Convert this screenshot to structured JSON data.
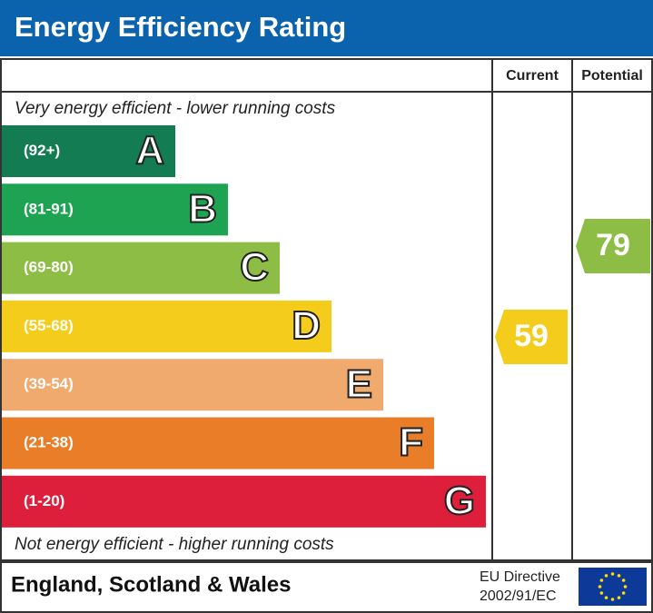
{
  "header": {
    "title": "Energy Efficiency Rating"
  },
  "columns": {
    "current": "Current",
    "potential": "Potential"
  },
  "top_note": "Very energy efficient - lower running costs",
  "bands": [
    {
      "range": "(92+)",
      "letter": "A",
      "color": "#137c52"
    },
    {
      "range": "(81-91)",
      "letter": "B",
      "color": "#1ea352"
    },
    {
      "range": "(69-80)",
      "letter": "C",
      "color": "#8dbd45"
    },
    {
      "range": "(55-68)",
      "letter": "D",
      "color": "#f3cc1c"
    },
    {
      "range": "(39-54)",
      "letter": "E",
      "color": "#f0aa6e"
    },
    {
      "range": "(21-38)",
      "letter": "F",
      "color": "#e97d28"
    },
    {
      "range": "(1-20)",
      "letter": "G",
      "color": "#de1f3c"
    }
  ],
  "bottom_note": "Not energy efficient - higher running costs",
  "current": {
    "value": 59
  },
  "potential": {
    "value": 79
  },
  "footer": {
    "region": "England, Scotland & Wales",
    "directive_line1": "EU Directive",
    "directive_line2": "2002/91/EC"
  }
}
